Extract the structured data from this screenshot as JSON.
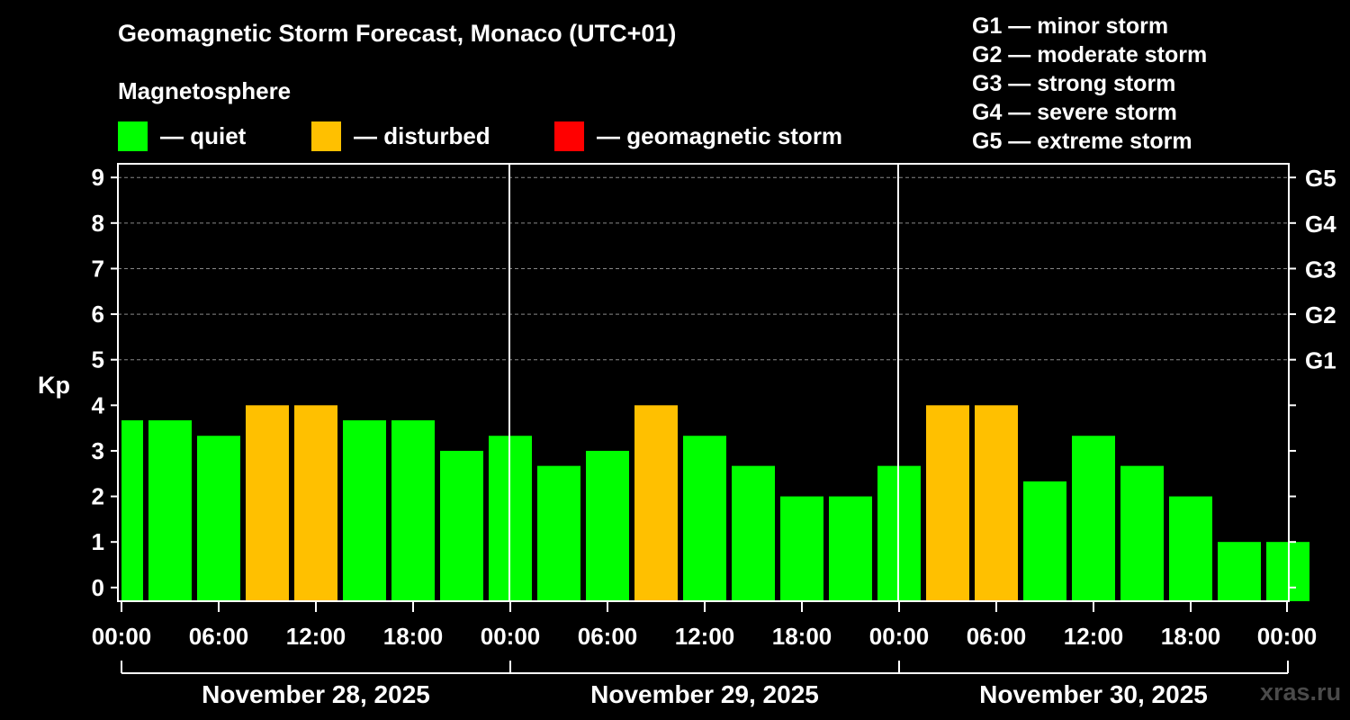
{
  "page": {
    "title": "Geomagnetic Storm Forecast, Monaco (UTC+01)",
    "subtitle": "Magnetosphere",
    "watermark": "xras.ru"
  },
  "legend": [
    {
      "label": "— quiet",
      "color": "#00ff00"
    },
    {
      "label": "— disturbed",
      "color": "#ffc000"
    },
    {
      "label": "— geomagnetic storm",
      "color": "#ff0000"
    }
  ],
  "g_scale": [
    "G1 — minor storm",
    "G2 — moderate storm",
    "G3 — strong storm",
    "G4 — severe storm",
    "G5 — extreme storm"
  ],
  "chart_data": {
    "type": "bar",
    "ylabel": "Kp",
    "ylim": [
      -0.3,
      9.3
    ],
    "yticks": [
      0,
      1,
      2,
      3,
      4,
      5,
      6,
      7,
      8,
      9
    ],
    "right_ticks": [
      {
        "value": 5,
        "label": "G1"
      },
      {
        "value": 6,
        "label": "G2"
      },
      {
        "value": 7,
        "label": "G3"
      },
      {
        "value": 8,
        "label": "G4"
      },
      {
        "value": 9,
        "label": "G5"
      }
    ],
    "x_tick_labels": [
      "00:00",
      "06:00",
      "12:00",
      "18:00",
      "00:00",
      "06:00",
      "12:00",
      "18:00",
      "00:00",
      "06:00",
      "12:00",
      "18:00",
      "00:00"
    ],
    "days": [
      "November 28, 2025",
      "November 29, 2025",
      "November 30, 2025"
    ],
    "thresholds": {
      "disturbed": 4,
      "storm": 5
    },
    "colors": {
      "quiet": "#00ff00",
      "disturbed": "#ffc000",
      "storm": "#ff0000"
    },
    "grid": "dashed at Kp 5-9",
    "values": [
      3.67,
      3.67,
      3.33,
      4.0,
      4.0,
      3.67,
      3.67,
      3.0,
      3.33,
      2.67,
      3.0,
      4.0,
      3.33,
      2.67,
      2.0,
      2.0,
      2.67,
      4.0,
      4.0,
      2.33,
      3.33,
      2.67,
      2.0,
      1.0,
      1.0
    ]
  }
}
